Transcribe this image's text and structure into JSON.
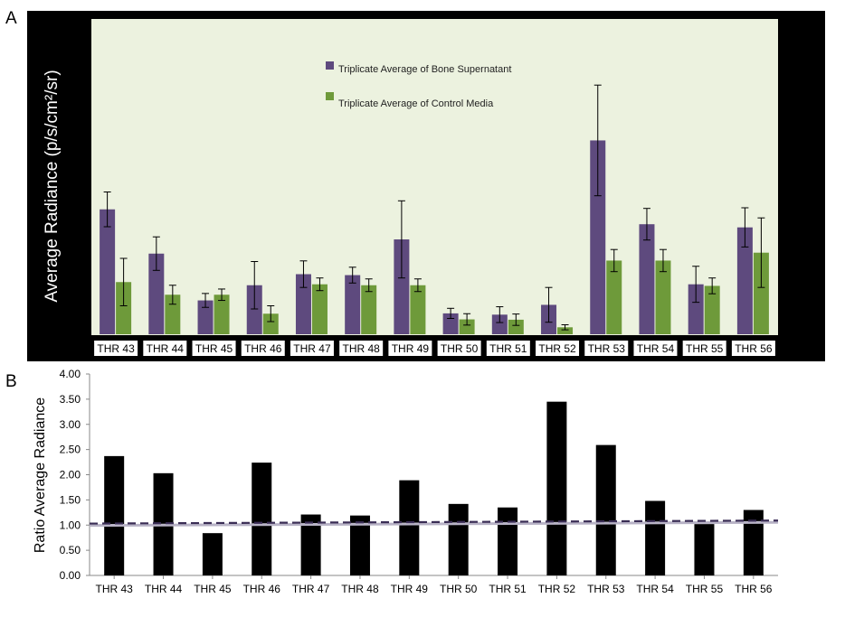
{
  "panels": {
    "a_label": "A",
    "b_label": "B"
  },
  "colors": {
    "bone": "#5e4a7e",
    "control": "#6e9a3a",
    "plot_bg_a": "#ecf2df",
    "frame_a": "#000000",
    "bar_b": "#000000",
    "dashed_line": "#3a2d55",
    "dashed_line_shadow": "#b8b3c6"
  },
  "chart_data": [
    {
      "panel": "A",
      "type": "bar",
      "ylabel": "Average Radiance (p/s/cm²/sr)",
      "xlabel": "",
      "ylim": [
        0,
        1
      ],
      "y_ticks_shown": false,
      "legend_position": "top-center",
      "categories": [
        "THR 43",
        "THR 44",
        "THR 45",
        "THR 46",
        "THR 47",
        "THR 48",
        "THR 49",
        "THR 50",
        "THR 51",
        "THR 52",
        "THR 53",
        "THR 54",
        "THR 55",
        "THR 56"
      ],
      "series": [
        {
          "name": "Triplicate Average of Bone Supernatant",
          "color": "#5e4a7e",
          "values": [
            0.395,
            0.255,
            0.107,
            0.155,
            0.19,
            0.187,
            0.3,
            0.066,
            0.062,
            0.093,
            0.613,
            0.348,
            0.158,
            0.338
          ],
          "errors": [
            0.055,
            0.053,
            0.022,
            0.075,
            0.042,
            0.025,
            0.122,
            0.016,
            0.025,
            0.055,
            0.175,
            0.05,
            0.057,
            0.062
          ]
        },
        {
          "name": "Triplicate Average of Control Media",
          "color": "#6e9a3a",
          "values": [
            0.165,
            0.125,
            0.125,
            0.065,
            0.158,
            0.155,
            0.155,
            0.047,
            0.046,
            0.022,
            0.233,
            0.233,
            0.153,
            0.258
          ],
          "errors": [
            0.075,
            0.03,
            0.018,
            0.025,
            0.02,
            0.02,
            0.02,
            0.018,
            0.018,
            0.008,
            0.035,
            0.035,
            0.025,
            0.11
          ]
        }
      ]
    },
    {
      "panel": "B",
      "type": "bar",
      "ylabel": "Ratio Average Radiance",
      "xlabel": "",
      "ylim": [
        0,
        4
      ],
      "y_ticks": [
        "0.00",
        "0.50",
        "1.00",
        "1.50",
        "2.00",
        "2.50",
        "3.00",
        "3.50",
        "4.00"
      ],
      "categories": [
        "THR 43",
        "THR 44",
        "THR 45",
        "THR 46",
        "THR 47",
        "THR 48",
        "THR 49",
        "THR 50",
        "THR 51",
        "THR 52",
        "THR 53",
        "THR 54",
        "THR 55",
        "THR 56"
      ],
      "series": [
        {
          "color": "#000000",
          "values": [
            2.37,
            2.03,
            0.84,
            2.24,
            1.21,
            1.19,
            1.89,
            1.42,
            1.35,
            3.45,
            2.59,
            1.48,
            1.02,
            1.3
          ]
        }
      ],
      "reference_line": {
        "start": 1.03,
        "end": 1.09,
        "style": "dashed"
      }
    }
  ]
}
